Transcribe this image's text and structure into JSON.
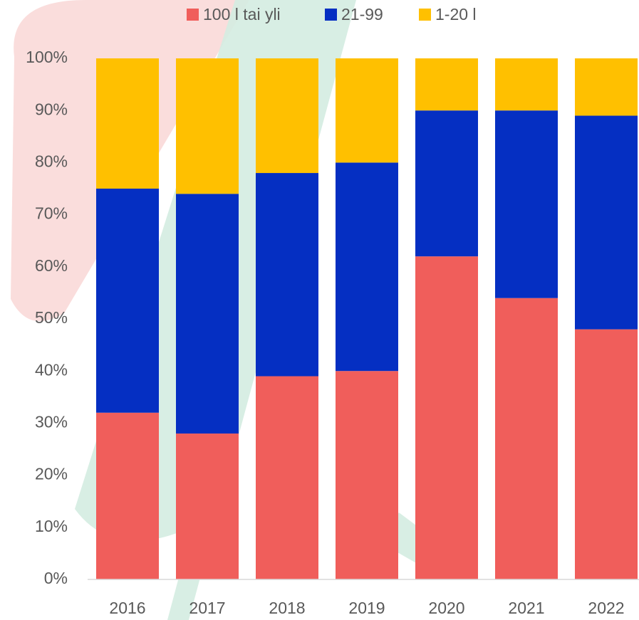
{
  "chart_data": {
    "type": "stacked_bar",
    "categories": [
      "2016",
      "2017",
      "2018",
      "2019",
      "2020",
      "2021",
      "2022"
    ],
    "series": [
      {
        "name": "100 l tai yli",
        "color": "#f05e5b",
        "values": [
          32,
          28,
          39,
          40,
          62,
          54,
          48
        ]
      },
      {
        "name": "21-99",
        "color": "#052fc2",
        "values": [
          43,
          46,
          39,
          40,
          28,
          36,
          41
        ]
      },
      {
        "name": "1-20 l",
        "color": "#ffc000",
        "values": [
          25,
          26,
          22,
          20,
          10,
          10,
          11
        ]
      }
    ],
    "ylim": [
      0,
      100
    ],
    "yticks": [
      {
        "value": 0,
        "label": "0%"
      },
      {
        "value": 10,
        "label": "10%"
      },
      {
        "value": 20,
        "label": "20%"
      },
      {
        "value": 30,
        "label": "30%"
      },
      {
        "value": 40,
        "label": "40%"
      },
      {
        "value": 50,
        "label": "50%"
      },
      {
        "value": 60,
        "label": "60%"
      },
      {
        "value": 70,
        "label": "70%"
      },
      {
        "value": 80,
        "label": "80%"
      },
      {
        "value": 90,
        "label": "90%"
      },
      {
        "value": 100,
        "label": "100%"
      }
    ],
    "legend": "top"
  }
}
